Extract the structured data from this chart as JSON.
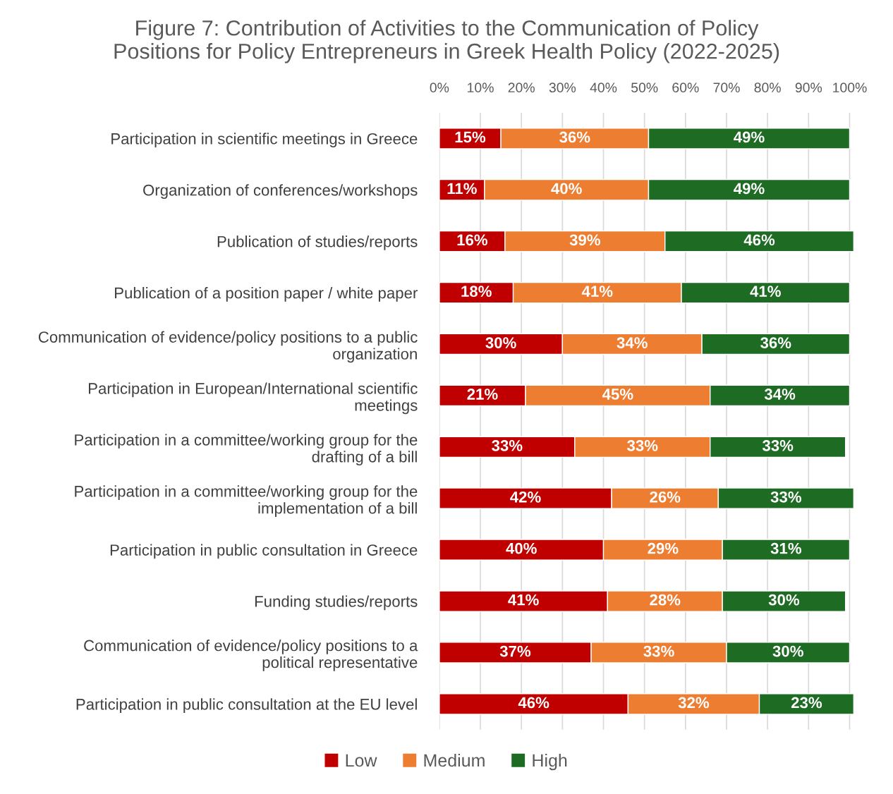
{
  "chart_data": {
    "type": "bar",
    "orientation": "horizontal",
    "stacked": true,
    "title": "Figure 7: Contribution of Activities to the Communication of Policy\nPositions for Policy Entrepreneurs in Greek Health Policy (2022-2025)",
    "categories": [
      "Participation in scientific meetings in Greece",
      "Organization of conferences/workshops",
      "Publication of studies/reports",
      "Publication of a position paper / white paper",
      "Communication of evidence/policy positions to a public\norganization",
      "Participation in European/International scientific\nmeetings",
      "Participation in a committee/working group for the\ndrafting of a bill",
      "Participation in a committee/working group for the\nimplementation of a bill",
      "Participation in public consultation in Greece",
      "Funding studies/reports",
      "Communication of evidence/policy positions to a\npolitical representative",
      "Participation in public consultation at the EU level"
    ],
    "series": [
      {
        "name": "Low",
        "color": "#c00000",
        "values": [
          15,
          11,
          16,
          18,
          30,
          21,
          33,
          42,
          40,
          41,
          37,
          46
        ],
        "value_labels": [
          "15%",
          "11%",
          "16%",
          "18%",
          "30%",
          "21%",
          "33%",
          "42%",
          "40%",
          "41%",
          "37%",
          "46%"
        ]
      },
      {
        "name": "Medium",
        "color": "#ed7d31",
        "values": [
          36,
          40,
          39,
          41,
          34,
          45,
          33,
          26,
          29,
          28,
          33,
          32
        ],
        "value_labels": [
          "36%",
          "40%",
          "39%",
          "41%",
          "34%",
          "45%",
          "33%",
          "26%",
          "29%",
          "28%",
          "33%",
          "32%"
        ]
      },
      {
        "name": "High",
        "color": "#1e6b23",
        "values": [
          49,
          49,
          46,
          41,
          36,
          34,
          33,
          33,
          31,
          30,
          30,
          23
        ],
        "value_labels": [
          "49%",
          "49%",
          "46%",
          "41%",
          "36%",
          "34%",
          "33%",
          "33%",
          "31%",
          "30%",
          "30%",
          "23%"
        ]
      }
    ],
    "xlim": [
      0,
      101
    ],
    "xticks": [
      {
        "value": 0,
        "label": "0%"
      },
      {
        "value": 10,
        "label": "10%"
      },
      {
        "value": 20,
        "label": "20%"
      },
      {
        "value": 30,
        "label": "30%"
      },
      {
        "value": 40,
        "label": "40%"
      },
      {
        "value": 50,
        "label": "50%"
      },
      {
        "value": 60,
        "label": "60%"
      },
      {
        "value": 70,
        "label": "70%"
      },
      {
        "value": 80,
        "label": "80%"
      },
      {
        "value": 90,
        "label": "90%"
      },
      {
        "value": 100,
        "label": "100%"
      }
    ],
    "grid": "x",
    "legend": "bottom"
  }
}
